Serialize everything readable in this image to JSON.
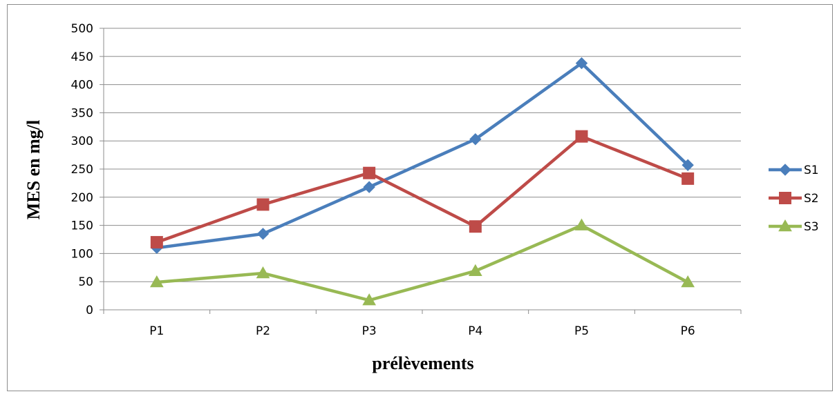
{
  "chart_data": {
    "type": "line",
    "title": "",
    "xlabel": "prélèvements",
    "ylabel": "MES en mg/l",
    "categories": [
      "P1",
      "P2",
      "P3",
      "P4",
      "P5",
      "P6"
    ],
    "ylim": [
      0,
      500
    ],
    "yticks": [
      "0",
      "50",
      "100",
      "150",
      "200",
      "250",
      "300",
      "350",
      "400",
      "450",
      "500"
    ],
    "grid": "horizontal",
    "legend_position": "right",
    "series": [
      {
        "name": "S1",
        "color": "#4a7ebb",
        "marker": "diamond",
        "values": [
          110,
          135,
          218,
          303,
          438,
          257
        ]
      },
      {
        "name": "S2",
        "color": "#be4b48",
        "marker": "square",
        "values": [
          120,
          187,
          243,
          148,
          308,
          233
        ]
      },
      {
        "name": "S3",
        "color": "#98b954",
        "marker": "triangle",
        "values": [
          49,
          65,
          17,
          69,
          150,
          49
        ]
      }
    ]
  }
}
